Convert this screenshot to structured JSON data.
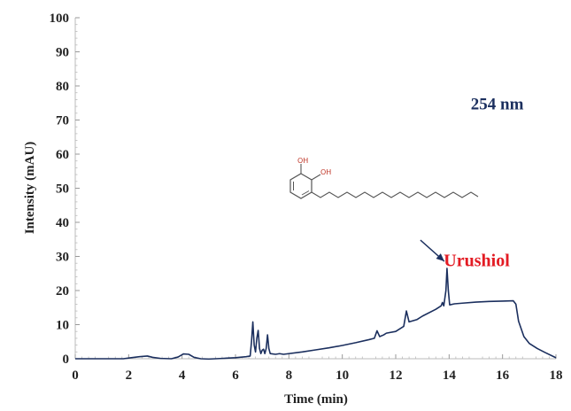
{
  "chart_data": {
    "type": "line",
    "title": "",
    "xlabel": "Time (min)",
    "ylabel": "Intensity (mAU)",
    "xlim": [
      0,
      18
    ],
    "ylim": [
      0,
      100
    ],
    "xticks": [
      0,
      2,
      4,
      6,
      8,
      10,
      12,
      14,
      16,
      18
    ],
    "yticks": [
      0,
      10,
      20,
      30,
      40,
      50,
      60,
      70,
      80,
      90,
      100
    ],
    "grid": false,
    "line_color": "#1b2f5e",
    "annotations": [
      {
        "text": "254 nm",
        "x": 15.8,
        "y": 75,
        "color": "#1b2f5e"
      },
      {
        "text": "Urushiol",
        "x": 15.4,
        "y": 29,
        "color": "#e31b23",
        "arrow_to": [
          13.92,
          27
        ]
      }
    ],
    "structure_labels": [
      "OH",
      "OH"
    ],
    "series": [
      {
        "values": [
          [
            0.0,
            0.0
          ],
          [
            1.0,
            0.0
          ],
          [
            1.8,
            0.0
          ],
          [
            2.1,
            0.3
          ],
          [
            2.4,
            0.6
          ],
          [
            2.7,
            0.8
          ],
          [
            2.9,
            0.4
          ],
          [
            3.2,
            0.1
          ],
          [
            3.6,
            0.0
          ],
          [
            3.85,
            0.5
          ],
          [
            4.05,
            1.4
          ],
          [
            4.25,
            1.3
          ],
          [
            4.45,
            0.4
          ],
          [
            4.7,
            0.0
          ],
          [
            5.0,
            -0.1
          ],
          [
            5.5,
            0.1
          ],
          [
            6.0,
            0.3
          ],
          [
            6.4,
            0.6
          ],
          [
            6.55,
            0.8
          ],
          [
            6.6,
            5.0
          ],
          [
            6.65,
            10.8
          ],
          [
            6.7,
            4.0
          ],
          [
            6.75,
            2.0
          ],
          [
            6.8,
            6.0
          ],
          [
            6.85,
            8.3
          ],
          [
            6.9,
            3.0
          ],
          [
            6.95,
            1.5
          ],
          [
            7.0,
            2.5
          ],
          [
            7.05,
            2.8
          ],
          [
            7.1,
            1.5
          ],
          [
            7.15,
            3.0
          ],
          [
            7.2,
            7.0
          ],
          [
            7.25,
            3.0
          ],
          [
            7.3,
            1.5
          ],
          [
            7.5,
            1.3
          ],
          [
            7.65,
            1.5
          ],
          [
            7.8,
            1.3
          ],
          [
            8.5,
            2.0
          ],
          [
            9.0,
            2.6
          ],
          [
            9.5,
            3.2
          ],
          [
            10.0,
            3.9
          ],
          [
            10.5,
            4.7
          ],
          [
            11.0,
            5.6
          ],
          [
            11.2,
            6.0
          ],
          [
            11.3,
            8.2
          ],
          [
            11.4,
            6.5
          ],
          [
            11.55,
            7.0
          ],
          [
            11.65,
            7.5
          ],
          [
            12.0,
            8.0
          ],
          [
            12.3,
            9.5
          ],
          [
            12.4,
            14.0
          ],
          [
            12.5,
            10.8
          ],
          [
            12.8,
            11.5
          ],
          [
            13.0,
            12.5
          ],
          [
            13.5,
            14.5
          ],
          [
            13.7,
            15.5
          ],
          [
            13.75,
            16.5
          ],
          [
            13.8,
            15.5
          ],
          [
            13.88,
            20.0
          ],
          [
            13.92,
            26.5
          ],
          [
            13.97,
            20.0
          ],
          [
            14.02,
            15.8
          ],
          [
            14.2,
            16.1
          ],
          [
            14.5,
            16.3
          ],
          [
            15.0,
            16.6
          ],
          [
            15.5,
            16.8
          ],
          [
            16.0,
            16.9
          ],
          [
            16.4,
            17.0
          ],
          [
            16.5,
            16.0
          ],
          [
            16.6,
            11.0
          ],
          [
            16.8,
            6.5
          ],
          [
            17.0,
            4.5
          ],
          [
            17.3,
            3.0
          ],
          [
            17.6,
            1.8
          ],
          [
            18.0,
            0.3
          ]
        ]
      }
    ]
  }
}
